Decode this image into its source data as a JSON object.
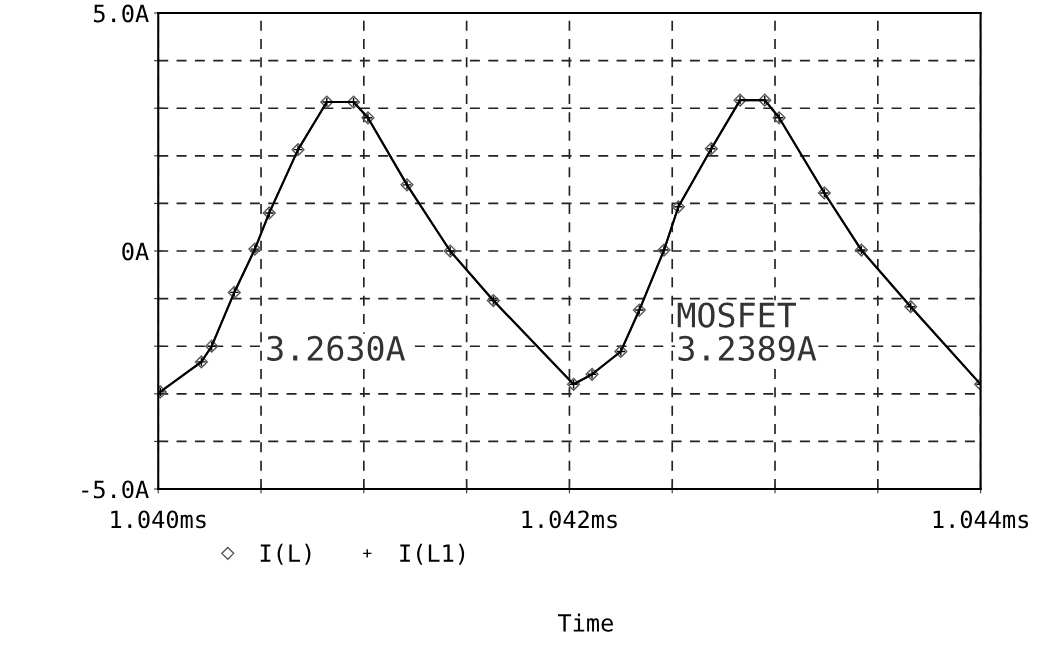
{
  "chart_data": {
    "type": "line",
    "xlabel": "Time",
    "x": [
      1.04001,
      1.04021,
      1.04026,
      1.04037,
      1.04047,
      1.04054,
      1.04068,
      1.04082,
      1.04095,
      1.04102,
      1.04121,
      1.04142,
      1.04163,
      1.04202,
      1.04211,
      1.04225,
      1.04234,
      1.04246,
      1.04253,
      1.04269,
      1.04283,
      1.04295,
      1.04302,
      1.04324,
      1.04342,
      1.04366,
      1.044
    ],
    "series": [
      {
        "name": "I(L)",
        "color": "#555555",
        "marker": "diamond",
        "values": [
          -2.96,
          -2.33,
          -2.0,
          -0.87,
          0.04,
          0.8,
          2.13,
          3.13,
          3.13,
          2.8,
          1.39,
          0.0,
          -1.04,
          -2.8,
          -2.59,
          -2.11,
          -1.24,
          0.02,
          0.93,
          2.15,
          3.17,
          3.17,
          2.8,
          1.22,
          0.02,
          -1.17,
          -2.8
        ]
      },
      {
        "name": "I(L1)",
        "color": "#000000",
        "marker": "cross",
        "values": [
          -2.96,
          -2.33,
          -2.0,
          -0.87,
          0.04,
          0.8,
          2.13,
          3.13,
          3.13,
          2.8,
          1.39,
          0.0,
          -1.04,
          -2.8,
          -2.59,
          -2.11,
          -1.24,
          0.02,
          0.93,
          2.15,
          3.17,
          3.17,
          2.8,
          1.22,
          0.02,
          -1.17,
          -2.8
        ]
      }
    ],
    "xlim": [
      1.04,
      1.044
    ],
    "xticks": [
      {
        "value": 1.04,
        "label": "1.040ms"
      },
      {
        "value": 1.0405,
        "label": null
      },
      {
        "value": 1.041,
        "label": null
      },
      {
        "value": 1.0415,
        "label": null
      },
      {
        "value": 1.042,
        "label": "1.042ms"
      },
      {
        "value": 1.0425,
        "label": null
      },
      {
        "value": 1.043,
        "label": null
      },
      {
        "value": 1.0435,
        "label": null
      },
      {
        "value": 1.044,
        "label": "1.044ms"
      }
    ],
    "ylim": [
      -5,
      5
    ],
    "yticks": [
      {
        "value": -5,
        "label": "-5.0A"
      },
      {
        "value": -4,
        "label": null
      },
      {
        "value": -3,
        "label": null
      },
      {
        "value": -2,
        "label": null
      },
      {
        "value": -1,
        "label": null
      },
      {
        "value": 0,
        "label": "0A"
      },
      {
        "value": 1,
        "label": null
      },
      {
        "value": 2,
        "label": null
      },
      {
        "value": 3,
        "label": null
      },
      {
        "value": 4,
        "label": null
      },
      {
        "value": 5,
        "label": "5.0A"
      }
    ],
    "grid": true,
    "legend": "bottom",
    "line_style": "solid",
    "annotations": [
      "3.2630A",
      "MOSFET",
      "3.2389A"
    ]
  }
}
